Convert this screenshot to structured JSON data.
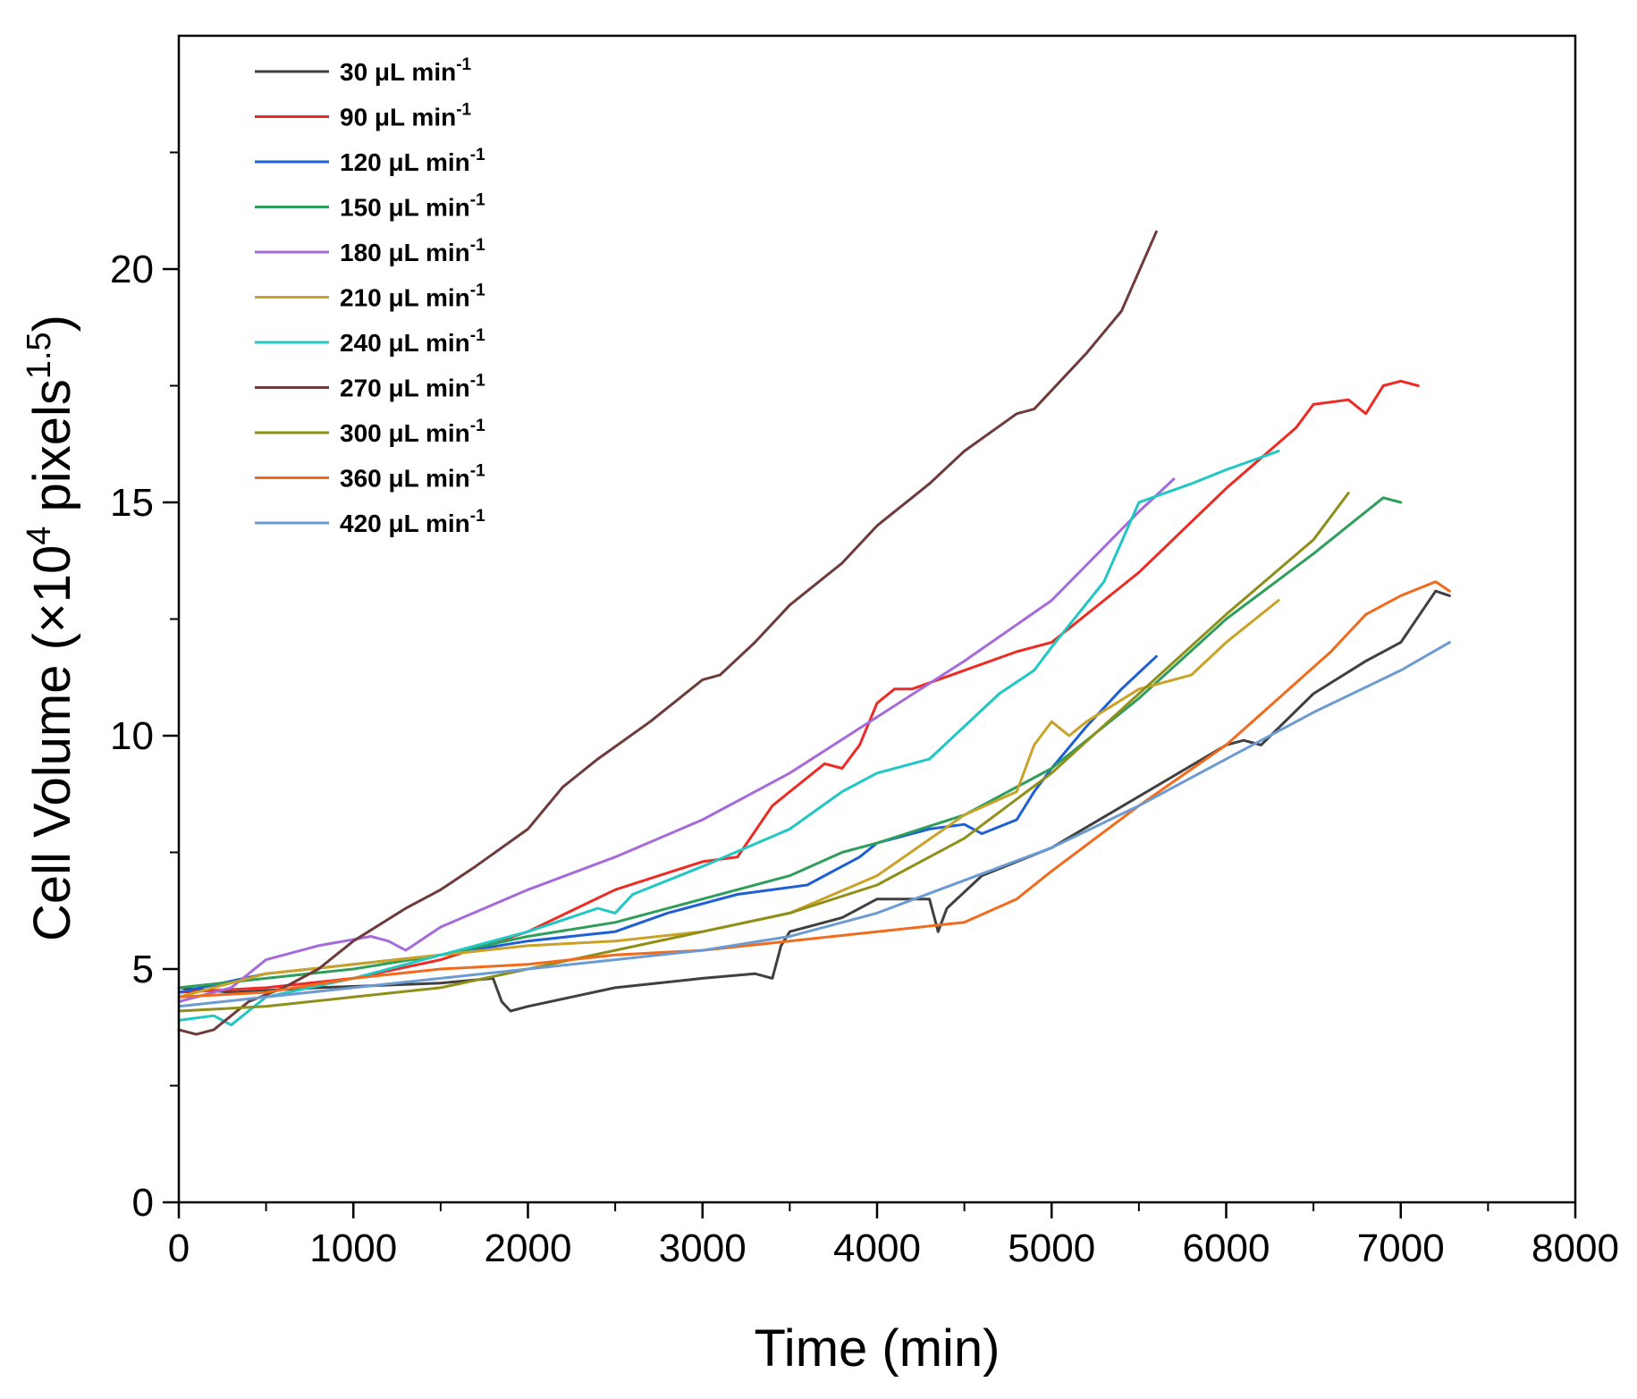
{
  "chart_data": {
    "type": "line",
    "title": "",
    "xlabel": "Time (min)",
    "ylabel": {
      "prefix": "Cell Volume (×10",
      "exp1": "4",
      "mid": " pixels",
      "exp2": "1.5",
      "suffix": ")"
    },
    "xlim": [
      0,
      8000
    ],
    "ylim": [
      0,
      25
    ],
    "xticks": [
      0,
      1000,
      2000,
      3000,
      4000,
      5000,
      6000,
      7000,
      8000
    ],
    "xtick_labels": [
      "0",
      "1000",
      "2000",
      "3000",
      "4000",
      "5000",
      "6000",
      "7000",
      "8000"
    ],
    "yticks": [
      0,
      5,
      10,
      15,
      20
    ],
    "ytick_labels": [
      "0",
      "5",
      "10",
      "15",
      "20"
    ],
    "grid": false,
    "legend": {
      "position": "top-left",
      "unit_text": "μL min",
      "unit_exp": "-1"
    },
    "series": [
      {
        "name": "30",
        "color": "#404040",
        "x": [
          0,
          300,
          800,
          1500,
          1800,
          1850,
          1900,
          2000,
          2500,
          3000,
          3300,
          3400,
          3450,
          3500,
          3800,
          4000,
          4300,
          4350,
          4400,
          4600,
          5000,
          5500,
          6000,
          6100,
          6200,
          6500,
          6800,
          7000,
          7200,
          7280
        ],
        "y": [
          4.6,
          4.5,
          4.6,
          4.7,
          4.8,
          4.3,
          4.1,
          4.2,
          4.6,
          4.8,
          4.9,
          4.8,
          5.5,
          5.8,
          6.1,
          6.5,
          6.5,
          5.8,
          6.3,
          7.0,
          7.6,
          8.7,
          9.8,
          9.9,
          9.8,
          10.9,
          11.6,
          12.0,
          13.1,
          13.0
        ]
      },
      {
        "name": "90",
        "color": "#ee2a24",
        "x": [
          0,
          500,
          1000,
          1500,
          2000,
          2500,
          3000,
          3200,
          3400,
          3700,
          3800,
          3900,
          4000,
          4100,
          4200,
          4500,
          4800,
          5000,
          5500,
          6000,
          6400,
          6500,
          6700,
          6800,
          6900,
          7000,
          7100
        ],
        "y": [
          4.5,
          4.6,
          4.8,
          5.2,
          5.8,
          6.7,
          7.3,
          7.4,
          8.5,
          9.4,
          9.3,
          9.8,
          10.7,
          11.0,
          11.0,
          11.4,
          11.8,
          12.0,
          13.5,
          15.3,
          16.6,
          17.1,
          17.2,
          16.9,
          17.5,
          17.6,
          17.5
        ]
      },
      {
        "name": "120",
        "color": "#1f5fd6",
        "x": [
          0,
          500,
          1000,
          1500,
          2000,
          2500,
          2800,
          3200,
          3600,
          3900,
          4000,
          4300,
          4500,
          4600,
          4800,
          4900,
          5000,
          5200,
          5400,
          5600
        ],
        "y": [
          4.5,
          4.9,
          5.1,
          5.3,
          5.6,
          5.8,
          6.2,
          6.6,
          6.8,
          7.4,
          7.7,
          8.0,
          8.1,
          7.9,
          8.2,
          8.8,
          9.3,
          10.2,
          11.0,
          11.7
        ]
      },
      {
        "name": "150",
        "color": "#2e9e5b",
        "x": [
          0,
          500,
          1000,
          1500,
          2000,
          2500,
          3000,
          3500,
          3800,
          4000,
          4500,
          5000,
          5500,
          6000,
          6500,
          6900,
          7000
        ],
        "y": [
          4.6,
          4.8,
          5.0,
          5.3,
          5.7,
          6.0,
          6.5,
          7.0,
          7.5,
          7.7,
          8.3,
          9.3,
          10.8,
          12.5,
          13.9,
          15.1,
          15.0
        ]
      },
      {
        "name": "180",
        "color": "#a66bdb",
        "x": [
          0,
          300,
          500,
          800,
          1100,
          1200,
          1300,
          1500,
          2000,
          2500,
          3000,
          3500,
          4000,
          4500,
          5000,
          5500,
          5700
        ],
        "y": [
          4.3,
          4.6,
          5.2,
          5.5,
          5.7,
          5.6,
          5.4,
          5.9,
          6.7,
          7.4,
          8.2,
          9.2,
          10.4,
          11.6,
          12.9,
          14.8,
          15.5
        ]
      },
      {
        "name": "210",
        "color": "#c9a227",
        "x": [
          0,
          500,
          1000,
          1500,
          2000,
          2500,
          3000,
          3500,
          4000,
          4500,
          4800,
          4900,
          5000,
          5100,
          5200,
          5500,
          5800,
          6000,
          6300
        ],
        "y": [
          4.4,
          4.9,
          5.1,
          5.3,
          5.5,
          5.6,
          5.8,
          6.2,
          7.0,
          8.3,
          8.8,
          9.8,
          10.3,
          10.0,
          10.3,
          11.0,
          11.3,
          12.0,
          12.9
        ]
      },
      {
        "name": "240",
        "color": "#1fc8c4",
        "x": [
          0,
          200,
          300,
          500,
          1000,
          1500,
          2000,
          2400,
          2500,
          2600,
          3000,
          3500,
          3800,
          4000,
          4300,
          4500,
          4700,
          4900,
          5000,
          5300,
          5500,
          5800,
          6000,
          6300
        ],
        "y": [
          3.9,
          4.0,
          3.8,
          4.4,
          4.8,
          5.3,
          5.8,
          6.3,
          6.2,
          6.6,
          7.2,
          8.0,
          8.8,
          9.2,
          9.5,
          10.2,
          10.9,
          11.4,
          11.9,
          13.3,
          15.0,
          15.4,
          15.7,
          16.1
        ]
      },
      {
        "name": "270",
        "color": "#6e3a3a",
        "x": [
          0,
          100,
          200,
          400,
          600,
          800,
          1000,
          1300,
          1500,
          1700,
          2000,
          2200,
          2400,
          2700,
          3000,
          3100,
          3300,
          3500,
          3800,
          4000,
          4300,
          4500,
          4800,
          4900,
          5000,
          5200,
          5400,
          5600
        ],
        "y": [
          3.7,
          3.6,
          3.7,
          4.3,
          4.6,
          5.0,
          5.6,
          6.3,
          6.7,
          7.2,
          8.0,
          8.9,
          9.5,
          10.3,
          11.2,
          11.3,
          12.0,
          12.8,
          13.7,
          14.5,
          15.4,
          16.1,
          16.9,
          17.0,
          17.4,
          18.2,
          19.1,
          20.8
        ]
      },
      {
        "name": "300",
        "color": "#8f8f1a",
        "x": [
          0,
          500,
          1000,
          1500,
          2000,
          2500,
          3000,
          3500,
          4000,
          4500,
          5000,
          5500,
          6000,
          6500,
          6700
        ],
        "y": [
          4.1,
          4.2,
          4.4,
          4.6,
          5.0,
          5.4,
          5.8,
          6.2,
          6.8,
          7.8,
          9.2,
          10.9,
          12.6,
          14.2,
          15.2
        ]
      },
      {
        "name": "360",
        "color": "#f26b1d",
        "x": [
          0,
          500,
          1000,
          1500,
          2000,
          2500,
          3000,
          3500,
          4000,
          4500,
          4800,
          5000,
          5500,
          6000,
          6300,
          6600,
          6800,
          7000,
          7200,
          7280
        ],
        "y": [
          4.4,
          4.5,
          4.8,
          5.0,
          5.1,
          5.3,
          5.4,
          5.6,
          5.8,
          6.0,
          6.5,
          7.1,
          8.5,
          9.8,
          10.8,
          11.8,
          12.6,
          13.0,
          13.3,
          13.1
        ]
      },
      {
        "name": "420",
        "color": "#6c9bd2",
        "x": [
          0,
          500,
          1000,
          1500,
          2000,
          2500,
          3000,
          3500,
          4000,
          4500,
          5000,
          5500,
          6000,
          6500,
          7000,
          7280
        ],
        "y": [
          4.2,
          4.4,
          4.6,
          4.8,
          5.0,
          5.2,
          5.4,
          5.7,
          6.2,
          6.9,
          7.6,
          8.5,
          9.5,
          10.5,
          11.4,
          12.0
        ]
      }
    ]
  }
}
